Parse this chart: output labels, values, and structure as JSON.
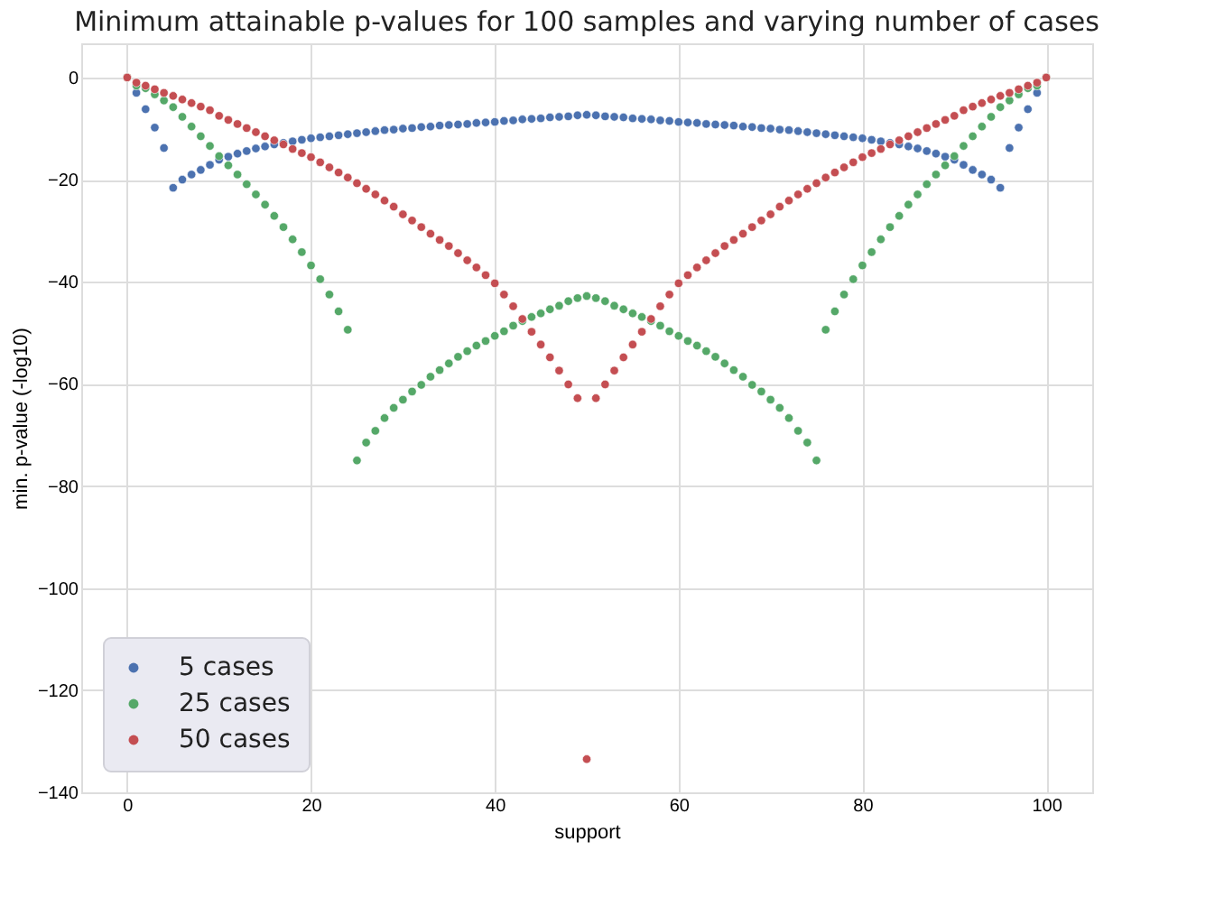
{
  "chart_data": {
    "type": "scatter",
    "title": "Minimum attainable p-values for 100 samples and varying number of cases",
    "xlabel": "support",
    "ylabel": "min. p-value (-log10)",
    "x": [
      0,
      1,
      2,
      3,
      4,
      5,
      6,
      7,
      8,
      9,
      10,
      11,
      12,
      13,
      14,
      15,
      16,
      17,
      18,
      19,
      20,
      21,
      22,
      23,
      24,
      25,
      26,
      27,
      28,
      29,
      30,
      31,
      32,
      33,
      34,
      35,
      36,
      37,
      38,
      39,
      40,
      41,
      42,
      43,
      44,
      45,
      46,
      47,
      48,
      49,
      50,
      51,
      52,
      53,
      54,
      55,
      56,
      57,
      58,
      59,
      60,
      61,
      62,
      63,
      64,
      65,
      66,
      67,
      68,
      69,
      70,
      71,
      72,
      73,
      74,
      75,
      76,
      77,
      78,
      79,
      80,
      81,
      82,
      83,
      84,
      85,
      86,
      87,
      88,
      89,
      90,
      91,
      92,
      93,
      94,
      95,
      96,
      97,
      98,
      99,
      100
    ],
    "series": [
      {
        "name": "5 cases",
        "color": "#4c72b0",
        "values": [
          null,
          -3,
          -6.2,
          -9.8,
          -13.8,
          -21.6,
          -20,
          -19,
          -18.1,
          -17.1,
          -16.1,
          -15.5,
          -14.9,
          -14.4,
          -13.9,
          -13.5,
          -13.1,
          -12.8,
          -12.5,
          -12.2,
          -11.9,
          -11.7,
          -11.5,
          -11.3,
          -11.1,
          -10.9,
          -10.7,
          -10.5,
          -10.3,
          -10.2,
          -10,
          -9.9,
          -9.7,
          -9.6,
          -9.4,
          -9.3,
          -9.2,
          -9.1,
          -8.9,
          -8.8,
          -8.7,
          -8.5,
          -8.4,
          -8.2,
          -8.1,
          -8,
          -7.8,
          -7.7,
          -7.6,
          -7.4,
          -7.3,
          -7.4,
          -7.6,
          -7.7,
          -7.8,
          -8,
          -8.1,
          -8.2,
          -8.4,
          -8.5,
          -8.7,
          -8.8,
          -8.9,
          -9.1,
          -9.2,
          -9.3,
          -9.4,
          -9.6,
          -9.7,
          -9.9,
          -10,
          -10.2,
          -10.3,
          -10.5,
          -10.7,
          -10.9,
          -11.1,
          -11.3,
          -11.5,
          -11.7,
          -11.9,
          -12.2,
          -12.5,
          -12.8,
          -13.1,
          -13.5,
          -13.9,
          -14.4,
          -14.9,
          -15.5,
          -16.1,
          -17.1,
          -18.1,
          -19,
          -20,
          -21.6,
          -13.8,
          -9.8,
          -6.2,
          -3,
          null
        ]
      },
      {
        "name": "25 cases",
        "color": "#55a868",
        "values": [
          0,
          -1.6,
          -2.1,
          -3.3,
          -4.5,
          -5.8,
          -7.7,
          -9.6,
          -11.5,
          -13.4,
          -15.4,
          -17.2,
          -19,
          -20.9,
          -22.9,
          -24.9,
          -27.1,
          -29.3,
          -31.7,
          -34.2,
          -36.8,
          -39.5,
          -42.5,
          -45.8,
          -49.4,
          -75,
          -71.5,
          -69.2,
          -66.7,
          -64.7,
          -63.1,
          -61.5,
          -60.2,
          -58.6,
          -57.3,
          -56,
          -54.7,
          -53.6,
          -52.5,
          -51.6,
          -50.6,
          -49.7,
          -48.6,
          -47.7,
          -46.9,
          -46.2,
          -45.4,
          -44.7,
          -43.8,
          -43.2,
          -42.8,
          -43.2,
          -43.8,
          -44.7,
          -45.4,
          -46.2,
          -46.9,
          -47.7,
          -48.6,
          -49.7,
          -50.6,
          -51.6,
          -52.5,
          -53.6,
          -54.7,
          -56,
          -57.3,
          -58.6,
          -60.2,
          -61.5,
          -63.1,
          -64.7,
          -66.7,
          -69.2,
          -71.5,
          -75,
          -49.4,
          -45.8,
          -42.5,
          -39.5,
          -36.8,
          -34.2,
          -31.7,
          -29.3,
          -27.1,
          -24.9,
          -22.9,
          -20.9,
          -19,
          -17.2,
          -15.4,
          -13.4,
          -11.5,
          -9.6,
          -7.7,
          -5.8,
          -4.5,
          -3.3,
          -2.1,
          -1.6,
          0
        ]
      },
      {
        "name": "50 cases",
        "color": "#c44e52",
        "values": [
          0,
          -1,
          -1.6,
          -2.3,
          -3,
          -3.6,
          -4.3,
          -5,
          -5.7,
          -6.4,
          -7.5,
          -8.3,
          -9.1,
          -9.9,
          -10.7,
          -11.5,
          -12.3,
          -13.1,
          -14,
          -14.8,
          -15.6,
          -16.6,
          -17.6,
          -18.6,
          -19.6,
          -20.7,
          -21.8,
          -22.9,
          -24.1,
          -25.3,
          -26.8,
          -28,
          -29.3,
          -30.6,
          -31.8,
          -33,
          -34.4,
          -35.8,
          -37.2,
          -38.7,
          -40.3,
          -42.5,
          -44.8,
          -47.3,
          -49.8,
          -52.3,
          -54.8,
          -57.4,
          -60.1,
          -62.8,
          -133.5,
          -62.8,
          -60.1,
          -57.4,
          -54.8,
          -52.3,
          -49.8,
          -47.3,
          -44.8,
          -42.5,
          -40.3,
          -38.7,
          -37.2,
          -35.8,
          -34.4,
          -33,
          -31.8,
          -30.6,
          -29.3,
          -28,
          -26.8,
          -25.3,
          -24.1,
          -22.9,
          -21.8,
          -20.7,
          -19.6,
          -18.6,
          -17.6,
          -16.6,
          -15.6,
          -14.8,
          -14,
          -13.1,
          -12.3,
          -11.5,
          -10.7,
          -9.9,
          -9.1,
          -8.3,
          -7.5,
          -6.4,
          -5.7,
          -5,
          -4.3,
          -3.6,
          -3,
          -2.3,
          -1.6,
          -1,
          0
        ]
      }
    ],
    "xlim": [
      -5,
      105
    ],
    "ylim": [
      -140,
      6.7
    ],
    "xticks": [
      0,
      20,
      40,
      60,
      80,
      100
    ],
    "yticks": [
      -140,
      -120,
      -100,
      -80,
      -60,
      -40,
      -20,
      0
    ],
    "grid": true,
    "legend": "bottom left",
    "marker": "circle"
  }
}
